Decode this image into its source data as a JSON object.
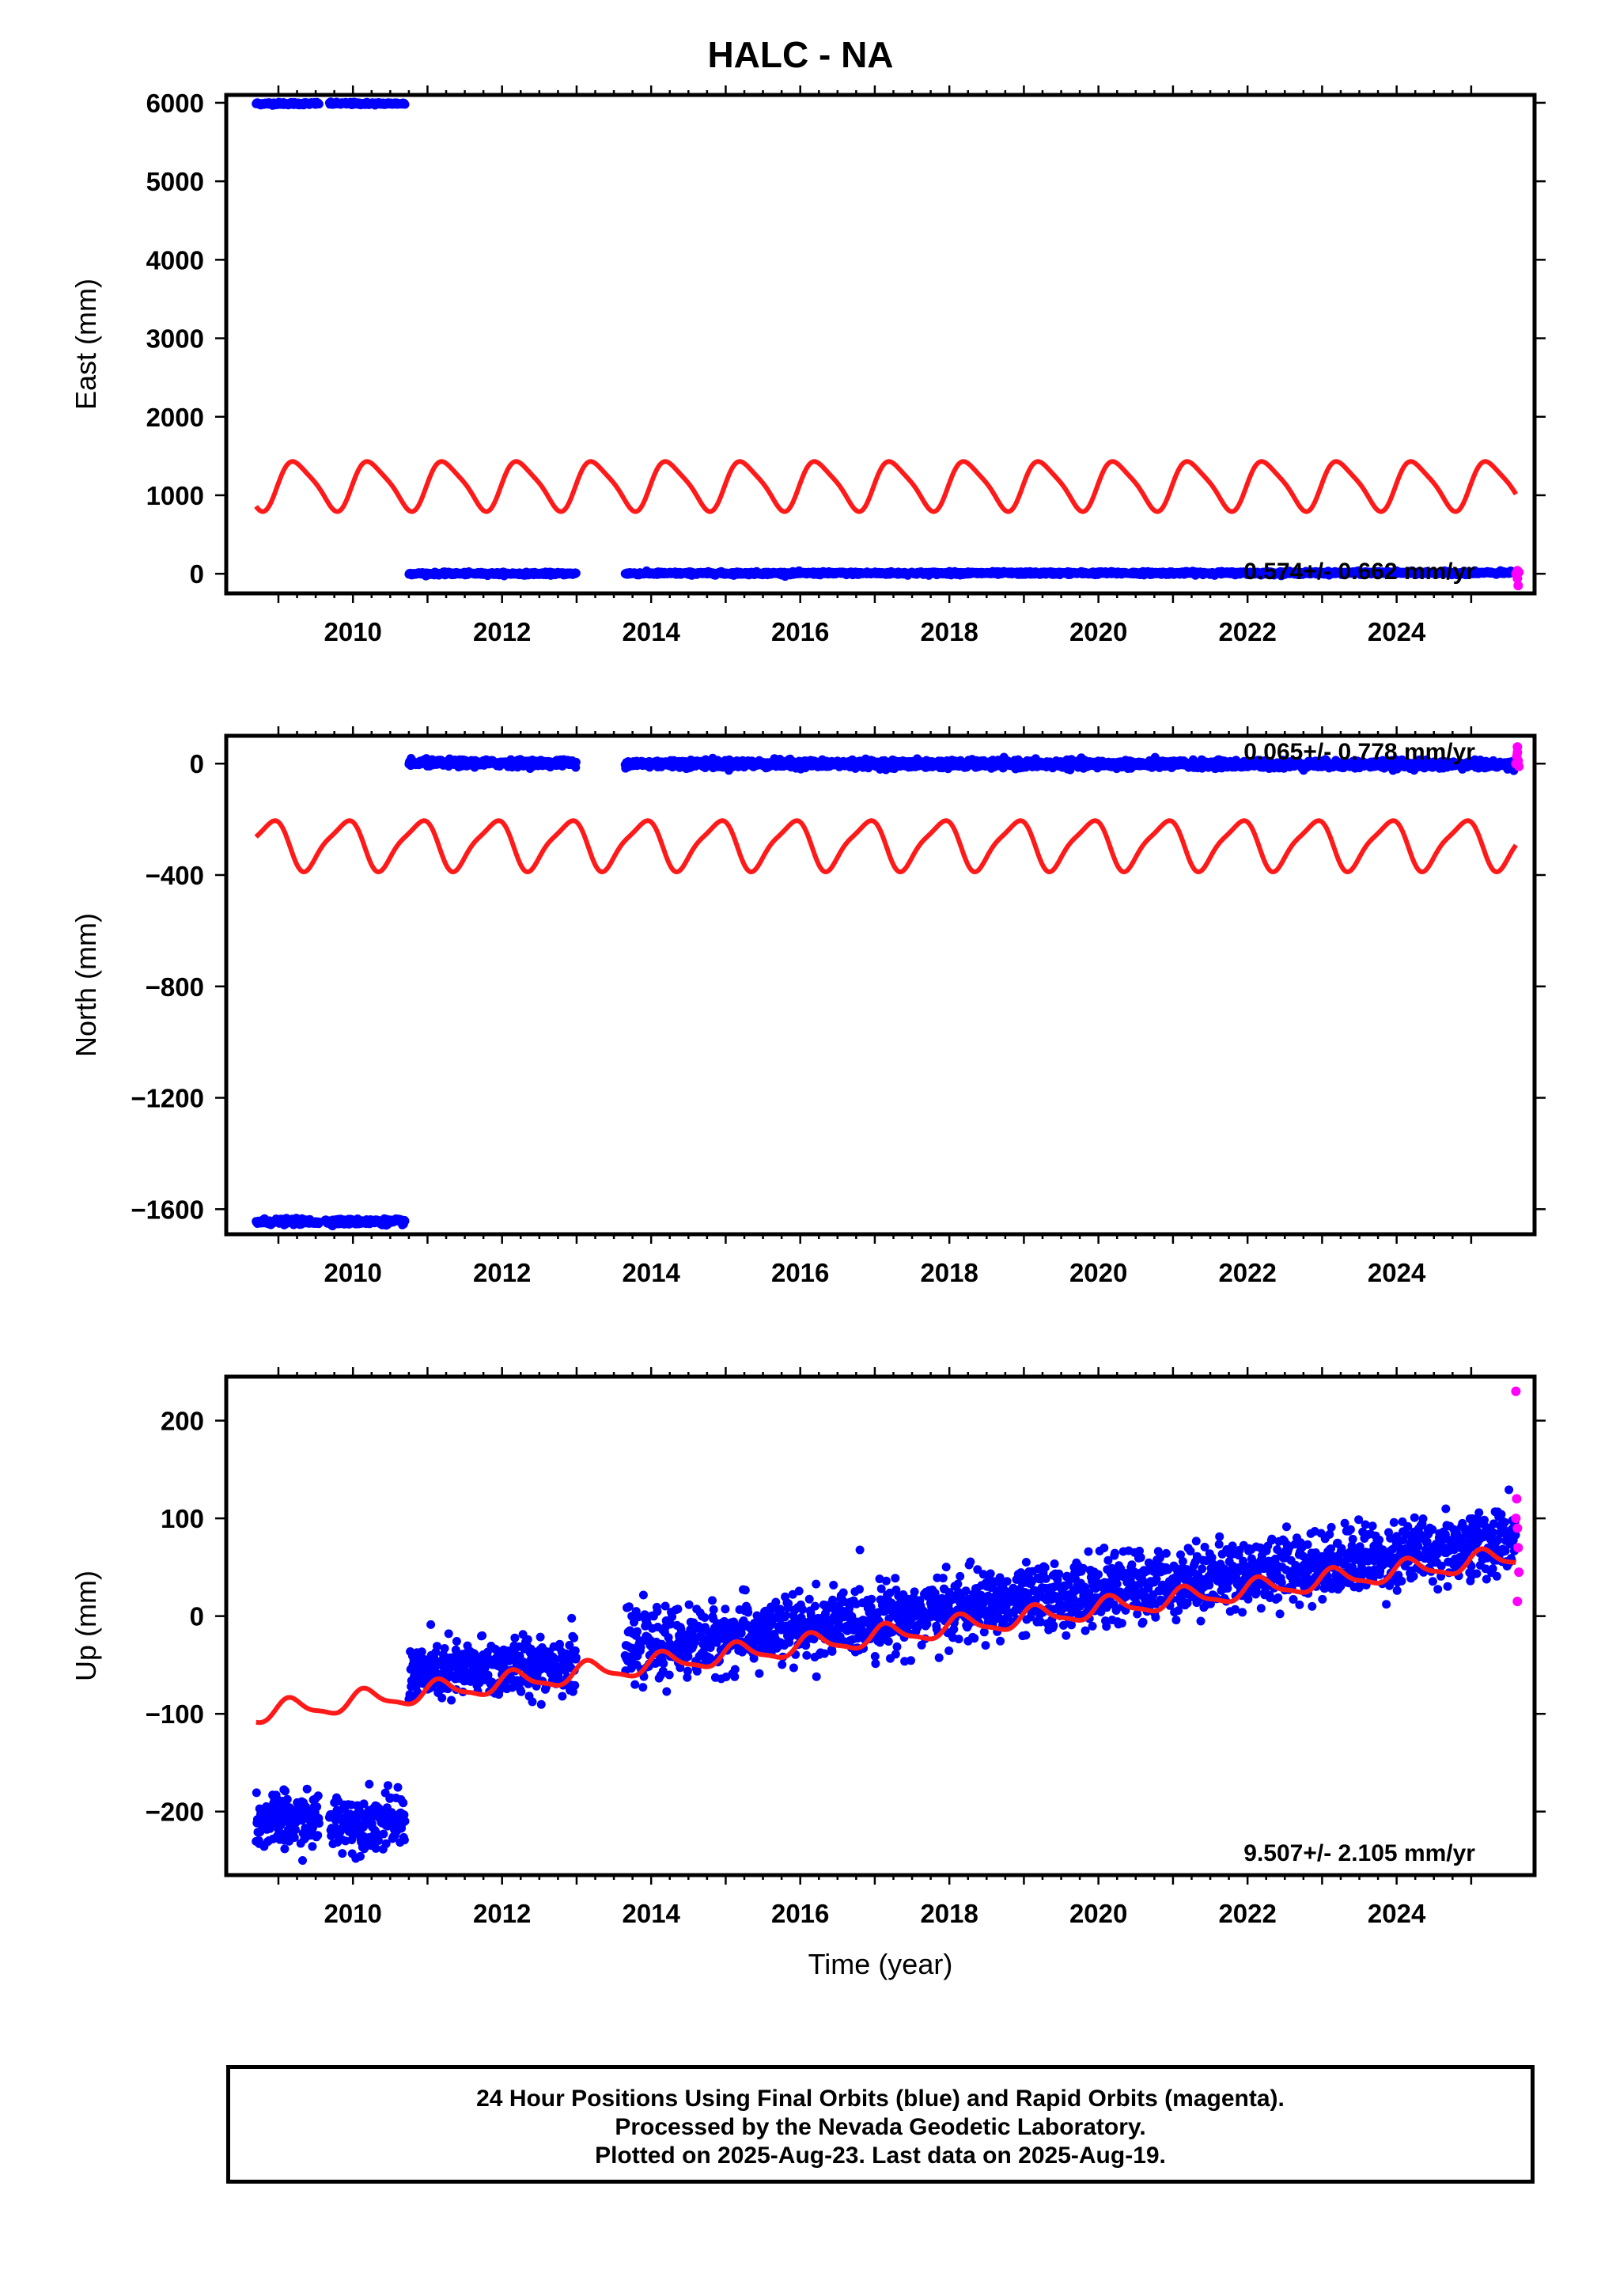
{
  "title": "HALC - NA",
  "footer": {
    "line1": "24 Hour Positions Using Final Orbits (blue) and Rapid Orbits (magenta).",
    "line2": "Processed by the Nevada Geodetic Laboratory.",
    "line3": "Plotted on 2025-Aug-23. Last data on 2025-Aug-19."
  },
  "colors": {
    "final": "#0000ff",
    "rapid": "#ff00ff",
    "model": "#ff1a1a",
    "frame": "#000000"
  },
  "chart_data": [
    {
      "type": "scatter",
      "ylabel": "East (mm)",
      "xlabel": "",
      "xlim": [
        2008.3,
        2025.85
      ],
      "ylim": [
        -250,
        6100
      ],
      "x_ticks": [
        "2010",
        "2012",
        "2014",
        "2016",
        "2018",
        "2020",
        "2022",
        "2024"
      ],
      "y_ticks": [
        "0",
        "1000",
        "2000",
        "3000",
        "4000",
        "5000",
        "6000"
      ],
      "rate_text": "0.574+/- 0.662 mm/yr",
      "final_segments": [
        {
          "start": 2008.7,
          "end": 2010.7,
          "gaps": [
            [
              2009.55,
              2009.68
            ]
          ],
          "center": 5990,
          "slope": 0,
          "noise": 9
        },
        {
          "start": 2010.75,
          "end": 2013.0,
          "gaps": [],
          "center": 2,
          "slope": 0,
          "noise": 9
        },
        {
          "start": 2013.65,
          "end": 2025.6,
          "gaps": [],
          "center": 5,
          "slope": 0.57,
          "noise": 10
        }
      ],
      "rapid_points": [
        [
          2025.6,
          0
        ],
        [
          2025.61,
          15
        ],
        [
          2025.62,
          -60
        ],
        [
          2025.63,
          -150
        ],
        [
          2025.64,
          20
        ],
        [
          2025.62,
          40
        ]
      ],
      "model": {
        "mean": 1130,
        "trend": 0,
        "amp1": 300,
        "amp2": 60,
        "phase1": 0,
        "phase2": 0.4,
        "start": 2008.7,
        "end": 2025.6
      }
    },
    {
      "type": "scatter",
      "ylabel": "North (mm)",
      "xlabel": "",
      "xlim": [
        2008.3,
        2025.85
      ],
      "ylim": [
        -1690,
        100
      ],
      "x_ticks": [
        "2010",
        "2012",
        "2014",
        "2016",
        "2018",
        "2020",
        "2022",
        "2024"
      ],
      "y_ticks": [
        "0",
        "−400",
        "−800",
        "−1200",
        "−1600"
      ],
      "rate_text": "0.065+/- 0.778 mm/yr",
      "final_segments": [
        {
          "start": 2008.7,
          "end": 2010.7,
          "gaps": [
            [
              2009.55,
              2009.62
            ]
          ],
          "center": -1645,
          "slope": 0,
          "noise": 5
        },
        {
          "start": 2010.75,
          "end": 2013.0,
          "gaps": [],
          "center": 2,
          "slope": 0,
          "noise": 6
        },
        {
          "start": 2013.65,
          "end": 2025.6,
          "gaps": [],
          "center": 0,
          "slope": -0.3,
          "noise": 7
        }
      ],
      "rapid_points": [
        [
          2025.6,
          0
        ],
        [
          2025.61,
          25
        ],
        [
          2025.62,
          60
        ],
        [
          2025.63,
          10
        ],
        [
          2025.64,
          -10
        ],
        [
          2025.62,
          40
        ]
      ],
      "model": {
        "mean": -290,
        "trend": 0,
        "amp1": 85,
        "amp2": 20,
        "phase1": 2.3,
        "phase2": 1.0,
        "start": 2008.7,
        "end": 2025.6
      }
    },
    {
      "type": "scatter",
      "ylabel": "Up (mm)",
      "xlabel": "Time (year)",
      "xlim": [
        2008.3,
        2025.85
      ],
      "ylim": [
        -265,
        245
      ],
      "x_ticks": [
        "2010",
        "2012",
        "2014",
        "2016",
        "2018",
        "2020",
        "2022",
        "2024"
      ],
      "y_ticks": [
        "200",
        "100",
        "0",
        "−100",
        "−200"
      ],
      "rate_text": "9.507+/- 2.105 mm/yr",
      "final_segments": [
        {
          "start": 2008.7,
          "end": 2010.7,
          "gaps": [
            [
              2009.55,
              2009.68
            ]
          ],
          "center": -210,
          "slope": 0,
          "noise": 14
        },
        {
          "start": 2010.75,
          "end": 2013.0,
          "gaps": [],
          "center": -60,
          "slope": 6,
          "noise": 15
        },
        {
          "start": 2013.65,
          "end": 2025.6,
          "gaps": [],
          "center": -35,
          "slope": 9.5,
          "noise": 17
        }
      ],
      "rapid_points": [
        [
          2025.6,
          230
        ],
        [
          2025.61,
          120
        ],
        [
          2025.62,
          90
        ],
        [
          2025.63,
          70
        ],
        [
          2025.64,
          45
        ],
        [
          2025.62,
          15
        ],
        [
          2025.6,
          100
        ]
      ],
      "model": {
        "mean": -100,
        "trend": 9.507,
        "amp1": 10,
        "amp2": 3,
        "phase1": 0.5,
        "phase2": 0.2,
        "start": 2008.7,
        "end": 2025.6
      }
    }
  ]
}
